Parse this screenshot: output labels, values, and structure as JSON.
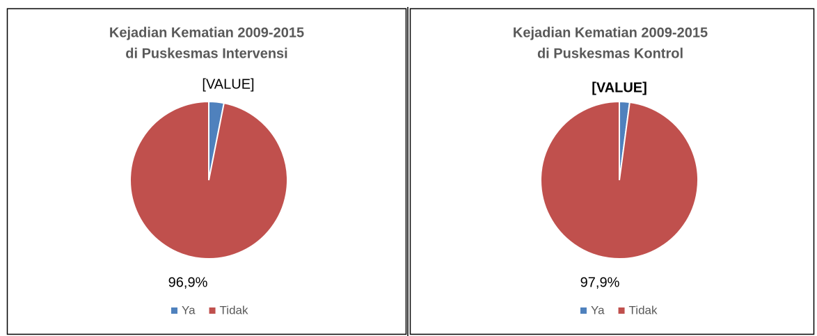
{
  "chart_data": [
    {
      "type": "pie",
      "title": [
        "Kejadian Kematian 2009-2015",
        "di Puskesmas Intervensi"
      ],
      "categories": [
        "Ya",
        "Tidak"
      ],
      "values": [
        3.1,
        96.9
      ],
      "value_labels": [
        "[VALUE]",
        "96,9%"
      ],
      "colors": [
        "#4f81bd",
        "#c0504d"
      ],
      "legend": "bottom"
    },
    {
      "type": "pie",
      "title": [
        "Kejadian Kematian 2009-2015",
        "di Puskesmas Kontrol"
      ],
      "categories": [
        "Ya",
        "Tidak"
      ],
      "values": [
        2.1,
        97.9
      ],
      "value_labels": [
        "[VALUE]",
        "97,9%"
      ],
      "colors": [
        "#4f81bd",
        "#c0504d"
      ],
      "legend": "bottom"
    }
  ]
}
